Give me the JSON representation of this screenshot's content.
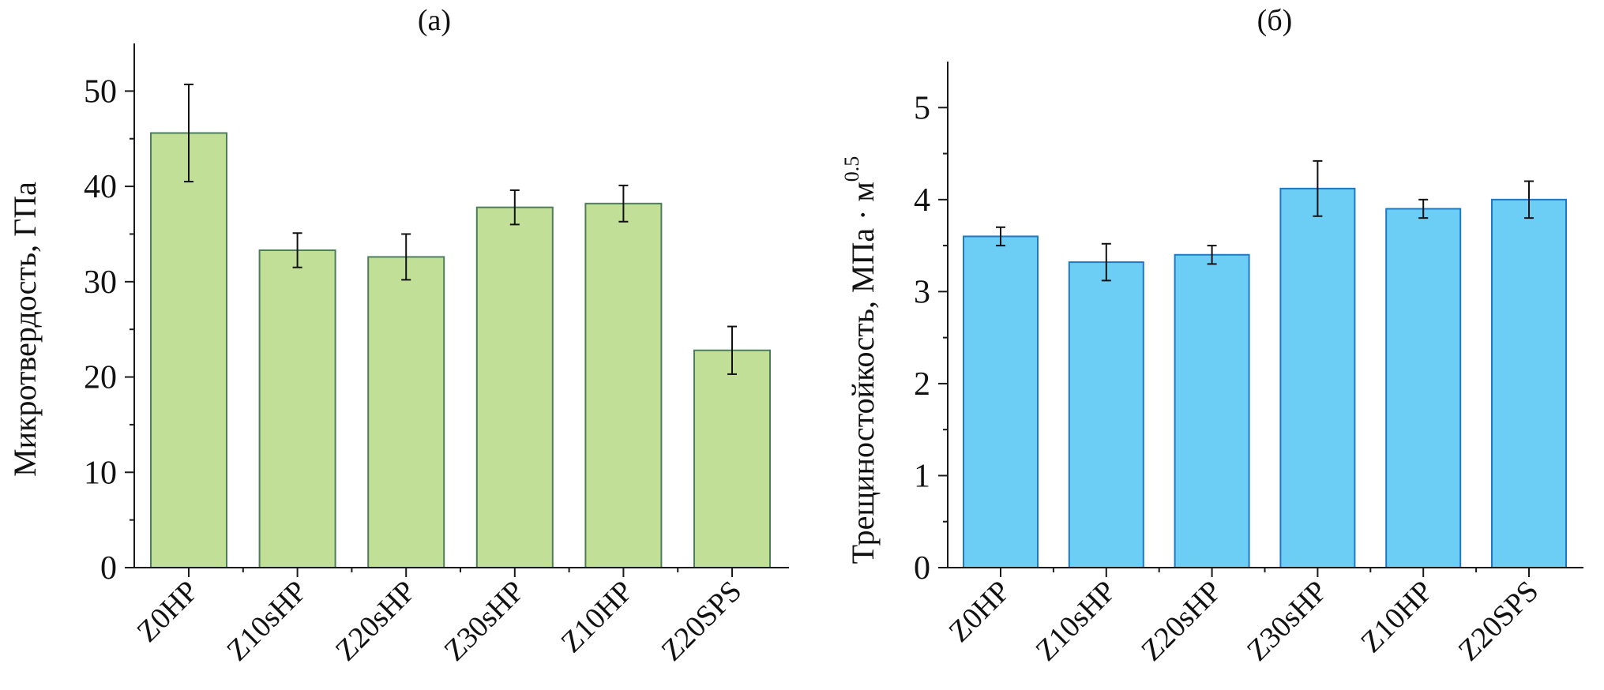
{
  "chart_data": [
    {
      "type": "bar",
      "title": "(a)",
      "xlabel": "",
      "ylabel": "Микротвердость, ГПа",
      "categories": [
        "Z0HP",
        "Z10sHP",
        "Z20sHP",
        "Z30sHP",
        "Z10HP",
        "Z20SPS"
      ],
      "values": [
        45.6,
        33.3,
        32.6,
        37.8,
        38.2,
        22.8
      ],
      "errors": [
        5.1,
        1.8,
        2.4,
        1.8,
        1.9,
        2.5
      ],
      "ylim": [
        0,
        55
      ],
      "yticks": [
        "0",
        "10",
        "20",
        "30",
        "40",
        "50"
      ],
      "ytick_values": [
        0,
        10,
        20,
        30,
        40,
        50
      ],
      "minor_step": 5,
      "fill": "#c1df97",
      "stroke": "#4e7d5b",
      "grid": false
    },
    {
      "type": "bar",
      "title": "(б)",
      "xlabel": "",
      "ylabel": "Трещиностойкость, МПа · м",
      "ylabel_sup": "0.5",
      "categories": [
        "Z0HP",
        "Z10sHP",
        "Z20sHP",
        "Z30sHP",
        "Z10HP",
        "Z20SPS"
      ],
      "values": [
        3.6,
        3.32,
        3.4,
        4.12,
        3.9,
        4.0
      ],
      "errors": [
        0.1,
        0.2,
        0.1,
        0.3,
        0.1,
        0.2
      ],
      "ylim": [
        0,
        5.5
      ],
      "yticks": [
        "0",
        "1",
        "2",
        "3",
        "4",
        "5"
      ],
      "ytick_values": [
        0,
        1,
        2,
        3,
        4,
        5
      ],
      "minor_step": 0.5,
      "fill": "#6dcef5",
      "stroke": "#1f78c4",
      "grid": false
    }
  ]
}
